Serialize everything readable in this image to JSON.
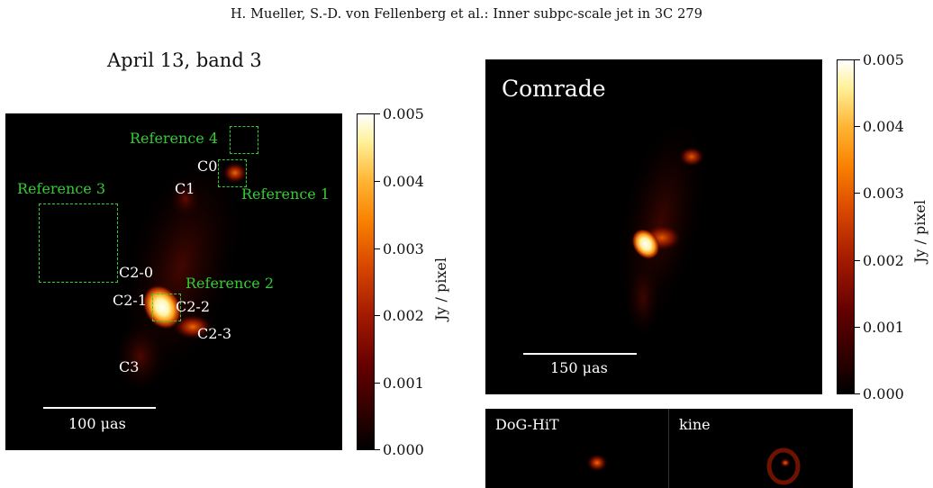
{
  "header": "H. Mueller, S.-D. von Fellenberg et al.: Inner subpc-scale jet in 3C 279",
  "left_panel": {
    "title": "April 13, band 3",
    "component_labels": [
      "C0",
      "C1",
      "C2-0",
      "C2-1",
      "C2-2",
      "C2-3",
      "C3"
    ],
    "reference_labels": [
      "Reference 4",
      "Reference 3",
      "Reference 1",
      "Reference 2"
    ],
    "scalebar_label": "100 μas",
    "colorbar": {
      "ticks": [
        "0.005",
        "0.004",
        "0.003",
        "0.002",
        "0.001",
        "0.000"
      ],
      "label": "Jy / pixel"
    }
  },
  "right_panel": {
    "title": "Comrade",
    "scalebar_label": "150 μas",
    "colorbar": {
      "ticks": [
        "0.005",
        "0.004",
        "0.003",
        "0.002",
        "0.001",
        "0.000"
      ],
      "label": "Jy / pixel"
    }
  },
  "bottom_panels": [
    "DoG-HiT",
    "kine"
  ],
  "colors": {
    "reference_box": "#33cc33",
    "label_text": "#ffffff",
    "colormap": "afmhot"
  }
}
